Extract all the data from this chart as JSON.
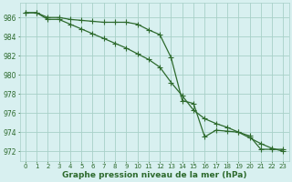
{
  "line1_x": [
    0,
    1,
    2,
    3,
    4,
    5,
    6,
    7,
    8,
    9,
    10,
    11,
    12,
    13,
    14,
    15,
    16,
    17,
    18,
    19,
    20,
    21,
    22,
    23
  ],
  "line1_y": [
    986.5,
    986.5,
    986.0,
    986.0,
    985.8,
    985.7,
    985.6,
    985.5,
    985.5,
    985.5,
    985.3,
    984.7,
    984.2,
    981.8,
    977.3,
    977.0,
    973.5,
    974.2,
    974.1,
    974.0,
    973.6,
    972.2,
    972.2,
    972.2
  ],
  "line2_x": [
    0,
    1,
    2,
    3,
    4,
    5,
    6,
    7,
    8,
    9,
    10,
    11,
    12,
    13,
    14,
    15,
    16,
    17,
    18,
    19,
    20,
    21,
    22,
    23
  ],
  "line2_y": [
    986.5,
    986.5,
    985.8,
    985.8,
    985.3,
    984.8,
    984.3,
    983.8,
    983.3,
    982.8,
    982.2,
    981.6,
    980.8,
    979.2,
    977.8,
    976.3,
    975.4,
    974.9,
    974.5,
    974.0,
    973.4,
    972.8,
    972.3,
    972.0
  ],
  "line_color": "#2d6a2d",
  "bg_color": "#d8f0f0",
  "grid_color": "#a8d0c8",
  "xlabel": "Graphe pression niveau de la mer (hPa)",
  "ylim": [
    971.0,
    987.5
  ],
  "xlim": [
    -0.5,
    23.5
  ],
  "yticks": [
    972,
    974,
    976,
    978,
    980,
    982,
    984,
    986
  ],
  "xticks": [
    0,
    1,
    2,
    3,
    4,
    5,
    6,
    7,
    8,
    9,
    10,
    11,
    12,
    13,
    14,
    15,
    16,
    17,
    18,
    19,
    20,
    21,
    22,
    23
  ],
  "ylabel_fontsize": 6,
  "xlabel_fontsize": 6.5,
  "tick_fontsize": 5,
  "marker": "+",
  "markersize": 4
}
